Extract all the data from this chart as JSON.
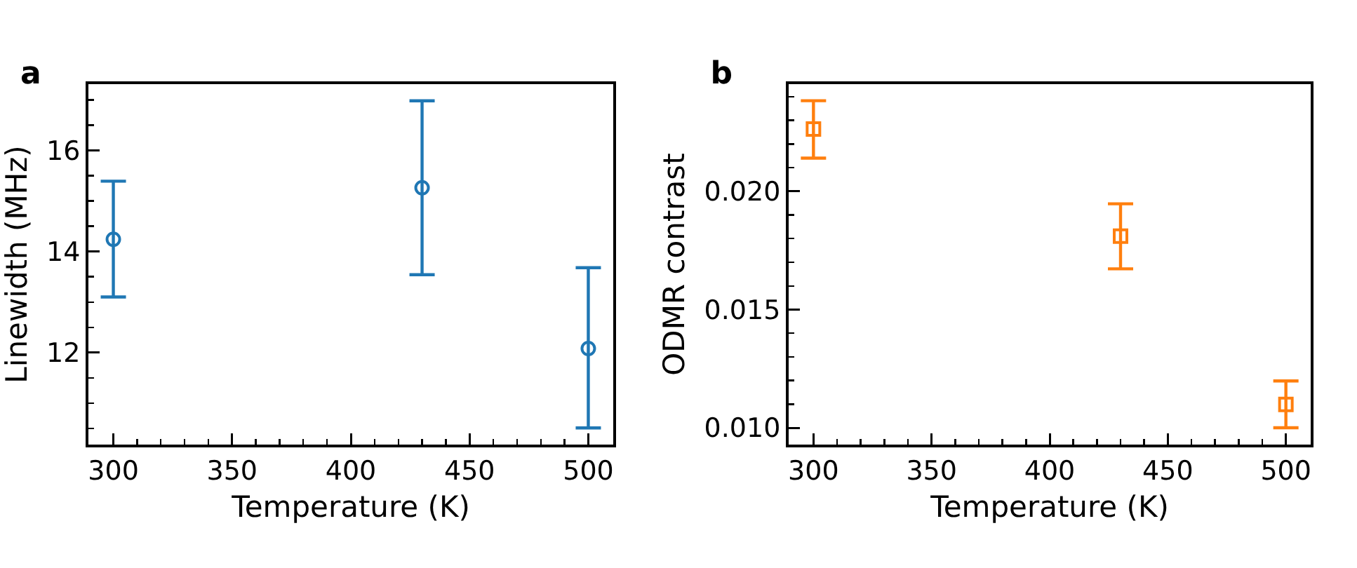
{
  "chart_data": [
    {
      "type": "scatter",
      "title": "a",
      "xlabel": "Temperature (K)",
      "ylabel": "Linewidth (MHz)",
      "marker": "circle",
      "grid": false,
      "x": [
        300,
        430,
        500
      ],
      "series": [
        {
          "color": "#1f77b4",
          "values": [
            14.24,
            15.26,
            12.08
          ],
          "errors": [
            [
              13.1,
              15.39
            ],
            [
              13.54,
              16.98
            ],
            [
              10.51,
              13.68
            ]
          ]
        }
      ],
      "xlim": [
        289.5,
        510.5
      ],
      "xticks": [
        300,
        {
          "value": 310,
          "label": null
        },
        {
          "value": 320,
          "label": null
        },
        {
          "value": 330,
          "label": null
        },
        {
          "value": 340,
          "label": null
        },
        350,
        {
          "value": 360,
          "label": null
        },
        {
          "value": 370,
          "label": null
        },
        {
          "value": 380,
          "label": null
        },
        {
          "value": 390,
          "label": null
        },
        400,
        {
          "value": 410,
          "label": null
        },
        {
          "value": 420,
          "label": null
        },
        {
          "value": 430,
          "label": null
        },
        {
          "value": 440,
          "label": null
        },
        450,
        {
          "value": 460,
          "label": null
        },
        {
          "value": 470,
          "label": null
        },
        {
          "value": 480,
          "label": null
        },
        {
          "value": 490,
          "label": null
        },
        500
      ],
      "ylim": [
        10.18,
        17.31
      ],
      "yticks": [
        {
          "value": 10.5,
          "label": null
        },
        {
          "value": 11,
          "label": null
        },
        {
          "value": 11.5,
          "label": null
        },
        12,
        {
          "value": 12.5,
          "label": null
        },
        {
          "value": 13,
          "label": null
        },
        {
          "value": 13.5,
          "label": null
        },
        14,
        {
          "value": 14.5,
          "label": null
        },
        {
          "value": 15,
          "label": null
        },
        {
          "value": 15.5,
          "label": null
        },
        16,
        {
          "value": 16.5,
          "label": null
        },
        {
          "value": 17,
          "label": null
        }
      ]
    },
    {
      "type": "scatter",
      "title": "b",
      "xlabel": "Temperature (K)",
      "ylabel": "ODMR contrast",
      "marker": "square",
      "grid": false,
      "x": [
        300,
        430,
        500
      ],
      "series": [
        {
          "color": "#ff7f0e",
          "values": [
            0.02263,
            0.0181,
            0.01099
          ],
          "errors": [
            [
              0.0214,
              0.02383
            ],
            [
              0.01672,
              0.01947
            ],
            [
              0.01,
              0.01198
            ]
          ]
        }
      ],
      "xlim": [
        289.5,
        510.5
      ],
      "xticks": [
        300,
        {
          "value": 310,
          "label": null
        },
        {
          "value": 320,
          "label": null
        },
        {
          "value": 330,
          "label": null
        },
        {
          "value": 340,
          "label": null
        },
        350,
        {
          "value": 360,
          "label": null
        },
        {
          "value": 370,
          "label": null
        },
        {
          "value": 380,
          "label": null
        },
        {
          "value": 390,
          "label": null
        },
        400,
        {
          "value": 410,
          "label": null
        },
        {
          "value": 420,
          "label": null
        },
        {
          "value": 430,
          "label": null
        },
        {
          "value": 440,
          "label": null
        },
        450,
        {
          "value": 460,
          "label": null
        },
        {
          "value": 470,
          "label": null
        },
        {
          "value": 480,
          "label": null
        },
        {
          "value": 490,
          "label": null
        },
        500
      ],
      "ylim": [
        0.00929,
        0.02453
      ],
      "yticks": [
        {
          "value": 0.01,
          "label": "0.010"
        },
        {
          "value": 0.011,
          "label": null
        },
        {
          "value": 0.012,
          "label": null
        },
        {
          "value": 0.013,
          "label": null
        },
        {
          "value": 0.014,
          "label": null
        },
        {
          "value": 0.015,
          "label": "0.015"
        },
        {
          "value": 0.016,
          "label": null
        },
        {
          "value": 0.017,
          "label": null
        },
        {
          "value": 0.018,
          "label": null
        },
        {
          "value": 0.019,
          "label": null
        },
        {
          "value": 0.02,
          "label": "0.020"
        },
        {
          "value": 0.021,
          "label": null
        },
        {
          "value": 0.022,
          "label": null
        },
        {
          "value": 0.023,
          "label": null
        },
        {
          "value": 0.024,
          "label": null
        }
      ]
    }
  ]
}
